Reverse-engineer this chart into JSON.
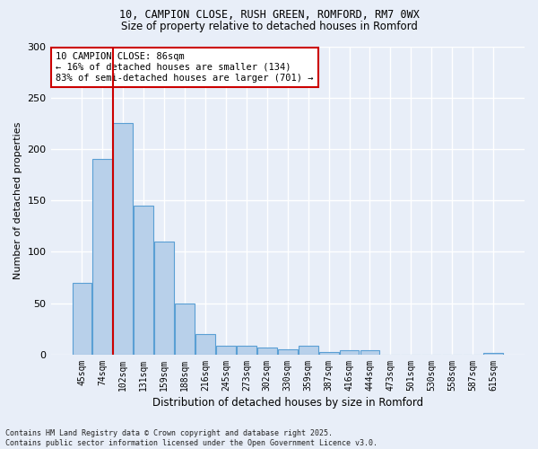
{
  "title1": "10, CAMPION CLOSE, RUSH GREEN, ROMFORD, RM7 0WX",
  "title2": "Size of property relative to detached houses in Romford",
  "xlabel": "Distribution of detached houses by size in Romford",
  "ylabel": "Number of detached properties",
  "categories": [
    "45sqm",
    "74sqm",
    "102sqm",
    "131sqm",
    "159sqm",
    "188sqm",
    "216sqm",
    "245sqm",
    "273sqm",
    "302sqm",
    "330sqm",
    "359sqm",
    "387sqm",
    "416sqm",
    "444sqm",
    "473sqm",
    "501sqm",
    "530sqm",
    "558sqm",
    "587sqm",
    "615sqm"
  ],
  "values": [
    70,
    190,
    225,
    145,
    110,
    50,
    20,
    9,
    9,
    7,
    5,
    9,
    3,
    4,
    4,
    0,
    0,
    0,
    0,
    0,
    2
  ],
  "bar_color": "#b8d0ea",
  "bar_edge_color": "#5a9fd4",
  "vline_x": 1.5,
  "vline_color": "#cc0000",
  "annotation_text": "10 CAMPION CLOSE: 86sqm\n← 16% of detached houses are smaller (134)\n83% of semi-detached houses are larger (701) →",
  "annotation_box_color": "#ffffff",
  "annotation_box_edge_color": "#cc0000",
  "background_color": "#e8eef8",
  "grid_color": "#ffffff",
  "ylim": [
    0,
    300
  ],
  "yticks": [
    0,
    50,
    100,
    150,
    200,
    250,
    300
  ],
  "footer": "Contains HM Land Registry data © Crown copyright and database right 2025.\nContains public sector information licensed under the Open Government Licence v3.0."
}
